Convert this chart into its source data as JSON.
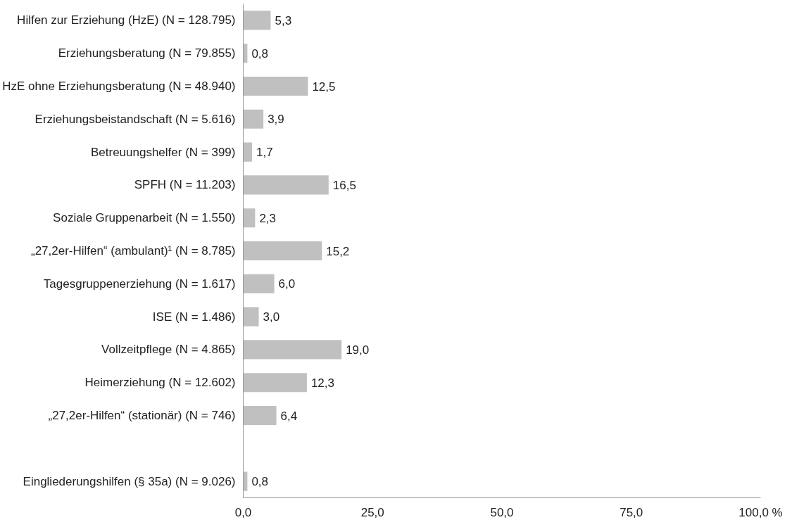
{
  "chart_data": {
    "type": "bar",
    "orientation": "horizontal",
    "categories": [
      "Hilfen zur Erziehung (HzE) (N = 128.795)",
      "Erziehungsberatung (N = 79.855)",
      "HzE ohne Erziehungsberatung (N = 48.940)",
      "Erziehungsbeistandschaft (N = 5.616)",
      "Betreuungshelfer (N = 399)",
      "SPFH (N = 11.203)",
      "Soziale Gruppenarbeit (N = 1.550)",
      "„27,2er-Hilfen“ (ambulant)¹ (N = 8.785)",
      "Tagesgruppenerziehung (N = 1.617)",
      "ISE (N = 1.486)",
      "Vollzeitpflege (N = 4.865)",
      "Heimerziehung (N = 12.602)",
      "„27,2er-Hilfen“ (stationär) (N = 746)",
      null,
      "Eingliederungshilfen (§ 35a) (N = 9.026)"
    ],
    "values": [
      5.3,
      0.8,
      12.5,
      3.9,
      1.7,
      16.5,
      2.3,
      15.2,
      6.0,
      3.0,
      19.0,
      12.3,
      6.4,
      null,
      0.8
    ],
    "value_labels": [
      "5,3",
      "0,8",
      "12,5",
      "3,9",
      "1,7",
      "16,5",
      "2,3",
      "15,2",
      "6,0",
      "3,0",
      "19,0",
      "12,3",
      "6,4",
      null,
      "0,8"
    ],
    "color": "#c0c0c0",
    "xlim": [
      0,
      100
    ],
    "xticks": [
      {
        "value": 0,
        "label": "0,0"
      },
      {
        "value": 25,
        "label": "25,0"
      },
      {
        "value": 50,
        "label": "50,0"
      },
      {
        "value": 75,
        "label": "75,0"
      },
      {
        "value": 100,
        "label": "100,0 %"
      }
    ],
    "grid": false
  }
}
